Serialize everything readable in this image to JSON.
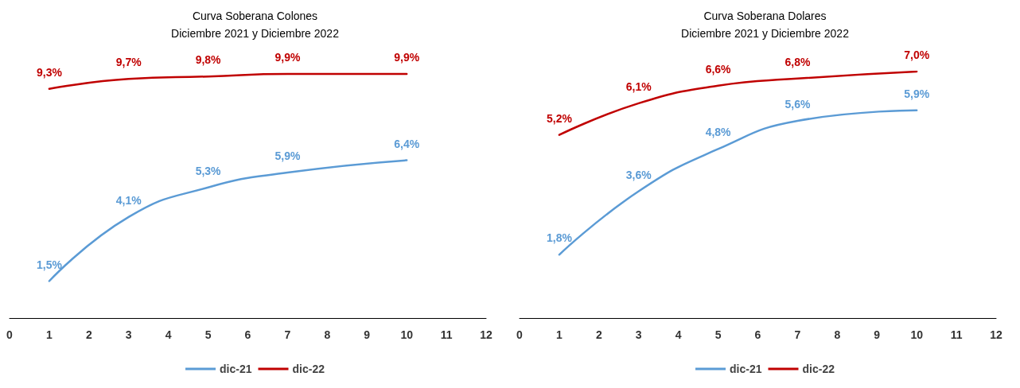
{
  "chart_data": [
    {
      "type": "line",
      "title": "Curva Soberana Colones",
      "subtitle": "Diciembre 2021 y Diciembre 2022",
      "x": [
        1,
        3,
        5,
        7,
        10
      ],
      "xlim": [
        0,
        12
      ],
      "xticks": [
        0,
        1,
        2,
        3,
        4,
        5,
        6,
        7,
        8,
        9,
        10,
        11,
        12
      ],
      "tick_labels": "x",
      "legend": "bottom",
      "marker": "none",
      "line_style": "solid",
      "series": [
        {
          "name": "dic-21",
          "color": "#5b9bd5",
          "values": [
            1.5,
            4.1,
            5.3,
            5.9,
            6.4
          ],
          "value_labels": [
            "1,5%",
            "4,1%",
            "5,3%",
            "5,9%",
            "6,4%"
          ]
        },
        {
          "name": "dic-22",
          "color": "#c00000",
          "values": [
            9.3,
            9.7,
            9.8,
            9.9,
            9.9
          ],
          "value_labels": [
            "9,3%",
            "9,7%",
            "9,8%",
            "9,9%",
            "9,9%"
          ]
        }
      ]
    },
    {
      "type": "line",
      "title": "Curva Soberana Dolares",
      "subtitle": "Diciembre 2021 y Diciembre 2022",
      "x": [
        1,
        3,
        5,
        7,
        10
      ],
      "xlim": [
        0,
        12
      ],
      "xticks": [
        0,
        1,
        2,
        3,
        4,
        5,
        6,
        7,
        8,
        9,
        10,
        11,
        12
      ],
      "tick_labels": "x",
      "legend": "bottom",
      "marker": "none",
      "line_style": "solid",
      "series": [
        {
          "name": "dic-21",
          "color": "#5b9bd5",
          "values": [
            1.8,
            3.6,
            4.8,
            5.6,
            5.9
          ],
          "value_labels": [
            "1,8%",
            "3,6%",
            "4,8%",
            "5,6%",
            "5,9%"
          ]
        },
        {
          "name": "dic-22",
          "color": "#c00000",
          "values": [
            5.2,
            6.1,
            6.6,
            6.8,
            7.0
          ],
          "value_labels": [
            "5,2%",
            "6,1%",
            "6,6%",
            "6,8%",
            "7,0%"
          ]
        }
      ]
    }
  ]
}
